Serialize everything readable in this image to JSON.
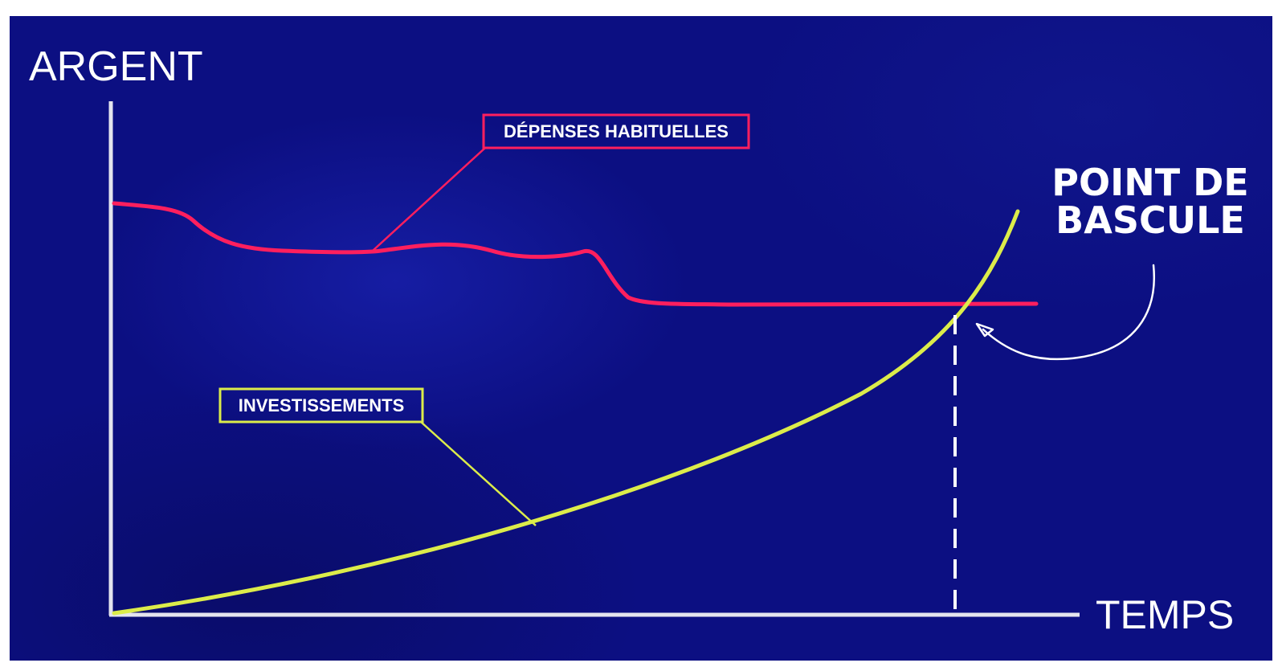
{
  "diagram": {
    "y_axis_label": "ARGENT",
    "x_axis_label": "TEMPS",
    "series": {
      "expenses_label": "DÉPENSES HABITUELLES",
      "investments_label": "INVESTISSEMENTS"
    },
    "callout": {
      "line1": "POINT DE",
      "line2": "BASCULE"
    },
    "colors": {
      "background": "#0c0f82",
      "axis": "#e4e4ee",
      "expenses": "#ff1f5e",
      "investments": "#dcec4a",
      "text": "#ffffff"
    }
  }
}
